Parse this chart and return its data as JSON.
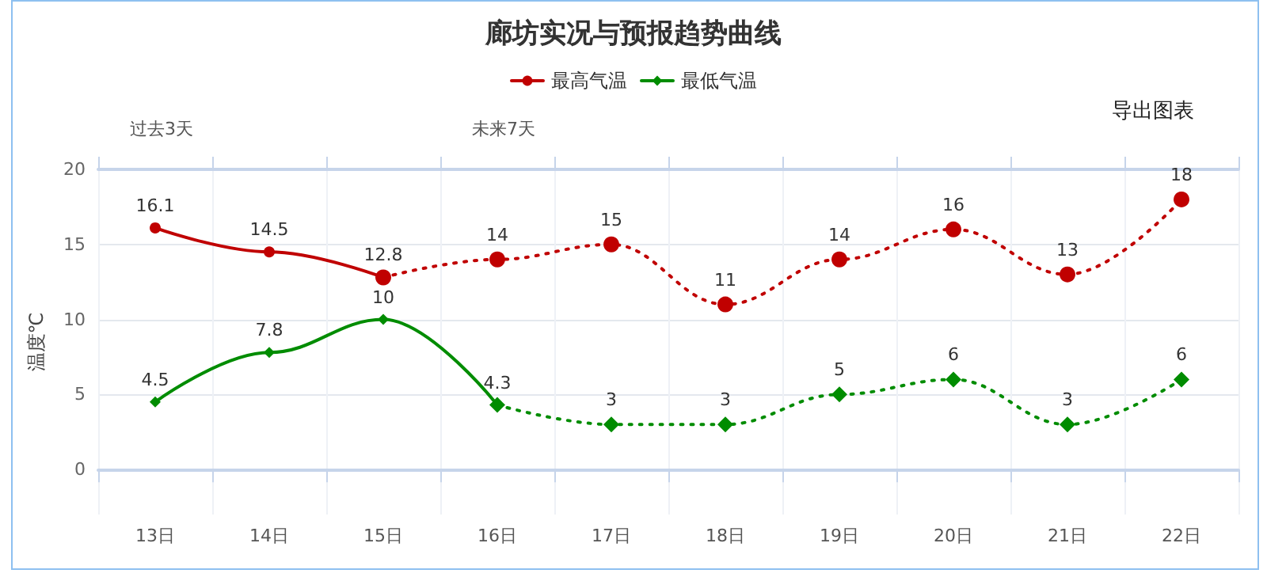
{
  "chart_data": {
    "type": "line",
    "title": "廊坊实况与预报趋势曲线",
    "ylabel": "温度℃",
    "annotations": [
      "过去3天",
      "未来7天",
      "导出图表"
    ],
    "categories": [
      "13日",
      "14日",
      "15日",
      "16日",
      "17日",
      "18日",
      "19日",
      "20日",
      "21日",
      "22日"
    ],
    "series": [
      {
        "name": "最高气温",
        "color": "#c00000",
        "marker": "circle",
        "line_style": "solid",
        "values": [
          16.1,
          14.5,
          12.8,
          null,
          null,
          null,
          null,
          null,
          null,
          null
        ],
        "value_labels": [
          "16.1",
          "14.5",
          "12.8",
          null,
          null,
          null,
          null,
          null,
          null,
          null
        ]
      },
      {
        "color": "#c00000",
        "marker": "circle",
        "line_style": "dotted",
        "values": [
          null,
          null,
          12.8,
          14,
          15,
          11,
          14,
          16,
          13,
          18
        ],
        "value_labels": [
          null,
          null,
          null,
          "14",
          "15",
          "11",
          "14",
          "16",
          "13",
          "18"
        ]
      },
      {
        "name": "最低气温",
        "color": "#008c00",
        "marker": "diamond",
        "line_style": "solid",
        "values": [
          4.5,
          7.8,
          10,
          4.3,
          null,
          null,
          null,
          null,
          null,
          null
        ],
        "value_labels": [
          "4.5",
          "7.8",
          "10",
          "4.3",
          null,
          null,
          null,
          null,
          null,
          null
        ]
      },
      {
        "color": "#008c00",
        "marker": "diamond",
        "line_style": "dotted",
        "values": [
          null,
          null,
          null,
          4.3,
          3,
          3,
          5,
          6,
          3,
          6
        ],
        "value_labels": [
          null,
          null,
          null,
          null,
          "3",
          "3",
          "5",
          "6",
          "3",
          "6"
        ]
      }
    ],
    "ylim": [
      -3,
      20
    ],
    "yticks": [
      0,
      5,
      10,
      15,
      20
    ],
    "grid": true,
    "legend": "top"
  }
}
